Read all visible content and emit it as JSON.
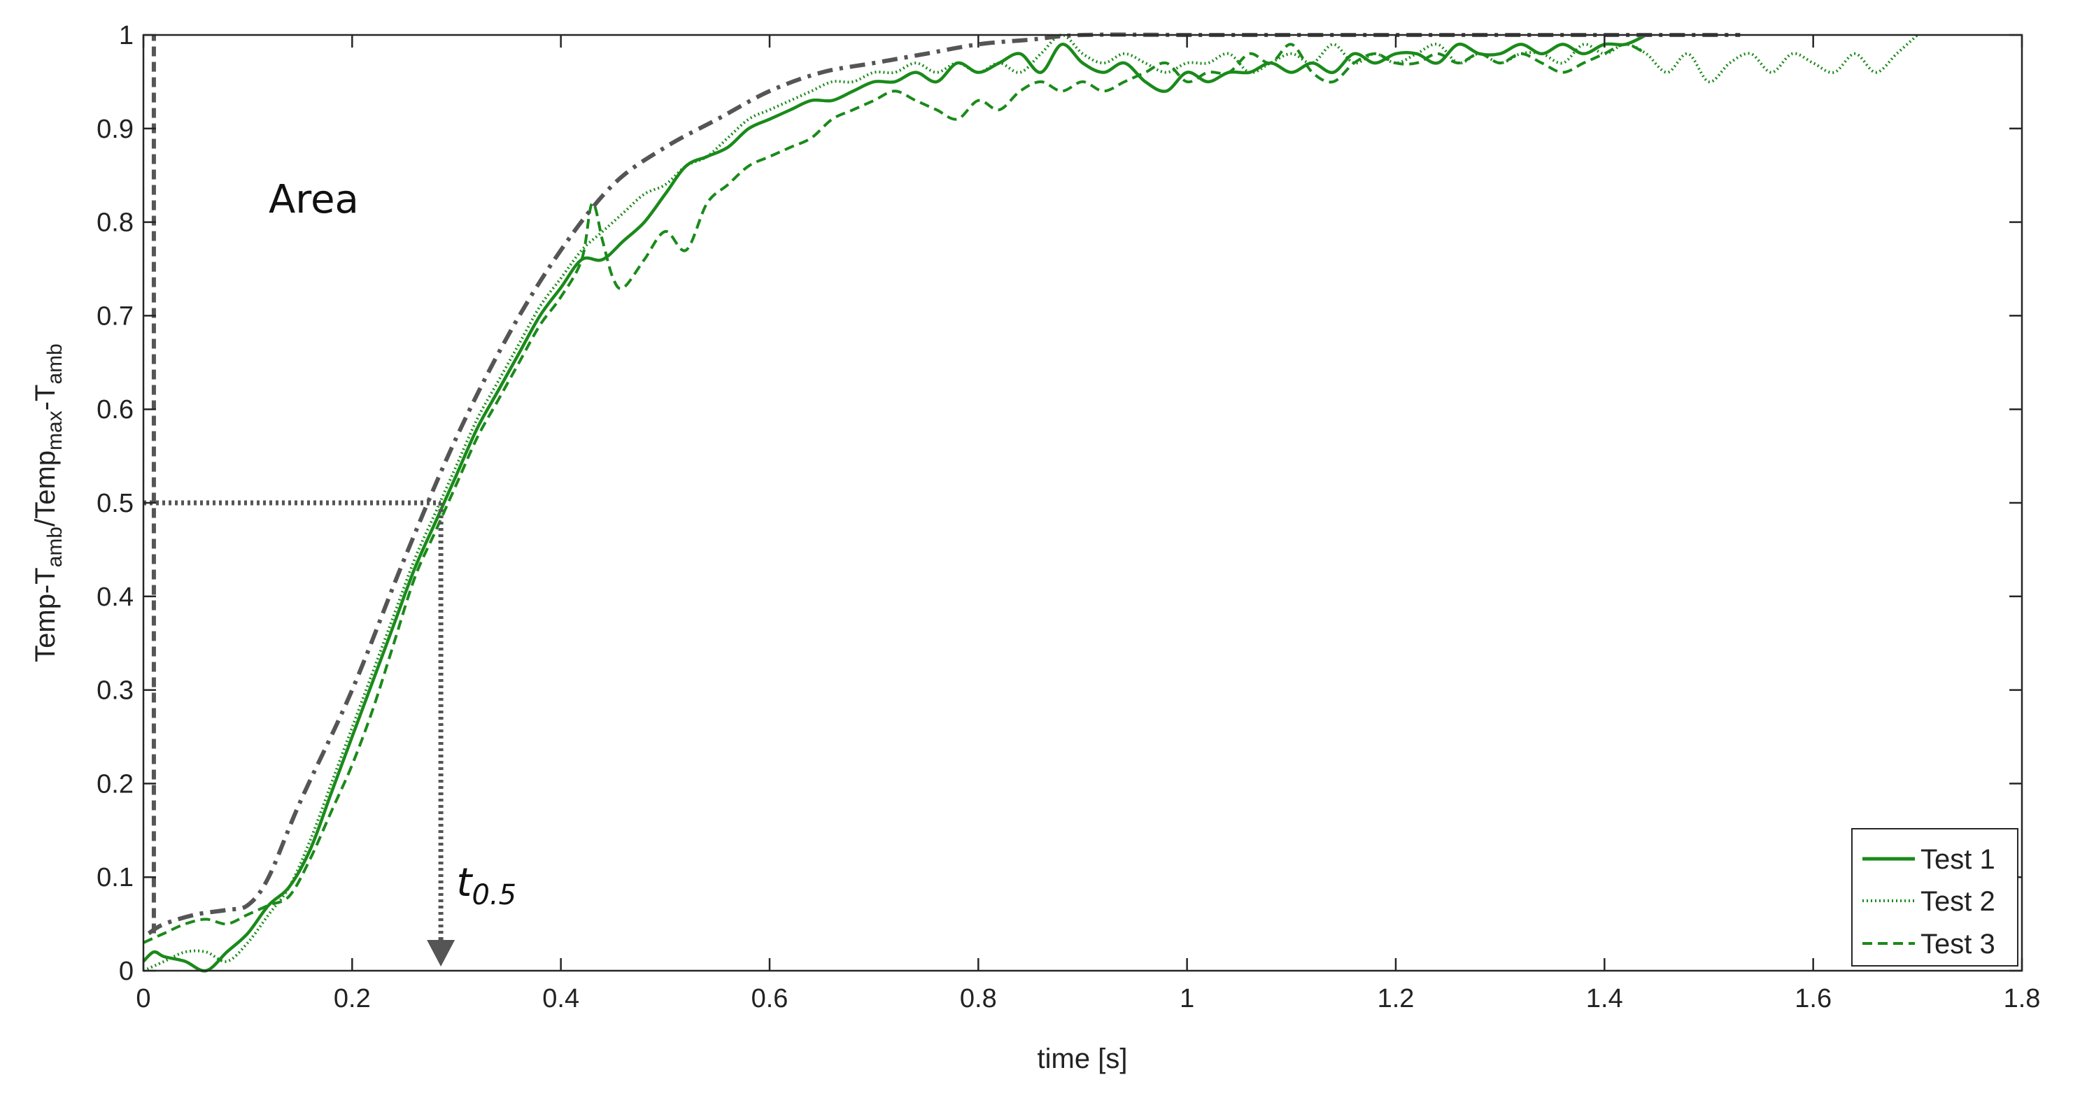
{
  "chart_data": {
    "type": "line",
    "xlabel": "time [s]",
    "ylabel": {
      "parts": [
        {
          "text": "Temp-T",
          "sub": false
        },
        {
          "text": "amb",
          "sub": true
        },
        {
          "text": "/Temp",
          "sub": false
        },
        {
          "text": "max",
          "sub": true
        },
        {
          "text": "-T",
          "sub": false
        },
        {
          "text": "amb",
          "sub": true
        }
      ]
    },
    "xlim": [
      0,
      1.8
    ],
    "ylim": [
      0,
      1
    ],
    "xticks": [
      0,
      0.2,
      0.4,
      0.6,
      0.8,
      1,
      1.2,
      1.4,
      1.6,
      1.8
    ],
    "xtick_labels": [
      "0",
      "0.2",
      "0.4",
      "0.6",
      "0.8",
      "1",
      "1.2",
      "1.4",
      "1.6",
      "1.8"
    ],
    "yticks": [
      0,
      0.1,
      0.2,
      0.3,
      0.4,
      0.5,
      0.6,
      0.7,
      0.8,
      0.9,
      1
    ],
    "ytick_labels": [
      "0",
      "0.1",
      "0.2",
      "0.3",
      "0.4",
      "0.5",
      "0.6",
      "0.7",
      "0.8",
      "0.9",
      "1"
    ],
    "grid": false,
    "legend_position": "bottom-right",
    "series": [
      {
        "name": "Test 1",
        "color": "#1a8a1a",
        "dash": "solid",
        "x": [
          0,
          0.01,
          0.02,
          0.04,
          0.06,
          0.08,
          0.1,
          0.12,
          0.14,
          0.16,
          0.18,
          0.2,
          0.22,
          0.24,
          0.26,
          0.28,
          0.3,
          0.32,
          0.34,
          0.36,
          0.38,
          0.4,
          0.42,
          0.44,
          0.46,
          0.48,
          0.5,
          0.52,
          0.54,
          0.56,
          0.58,
          0.6,
          0.62,
          0.64,
          0.66,
          0.68,
          0.7,
          0.72,
          0.74,
          0.76,
          0.78,
          0.8,
          0.82,
          0.84,
          0.86,
          0.88,
          0.9,
          0.92,
          0.94,
          0.96,
          0.98,
          1.0,
          1.02,
          1.04,
          1.06,
          1.08,
          1.1,
          1.12,
          1.14,
          1.16,
          1.18,
          1.2,
          1.22,
          1.24,
          1.26,
          1.28,
          1.3,
          1.32,
          1.34,
          1.36,
          1.38,
          1.4,
          1.42,
          1.44
        ],
        "y": [
          0.01,
          0.02,
          0.015,
          0.01,
          0.0,
          0.02,
          0.04,
          0.07,
          0.09,
          0.13,
          0.19,
          0.25,
          0.31,
          0.37,
          0.43,
          0.48,
          0.53,
          0.58,
          0.62,
          0.66,
          0.7,
          0.73,
          0.76,
          0.76,
          0.78,
          0.8,
          0.83,
          0.86,
          0.87,
          0.88,
          0.9,
          0.91,
          0.92,
          0.93,
          0.93,
          0.94,
          0.95,
          0.95,
          0.96,
          0.95,
          0.97,
          0.96,
          0.97,
          0.98,
          0.96,
          0.99,
          0.97,
          0.96,
          0.97,
          0.95,
          0.94,
          0.96,
          0.95,
          0.96,
          0.96,
          0.97,
          0.96,
          0.97,
          0.96,
          0.98,
          0.97,
          0.98,
          0.98,
          0.97,
          0.99,
          0.98,
          0.98,
          0.99,
          0.98,
          0.99,
          0.98,
          0.99,
          0.99,
          1.0
        ]
      },
      {
        "name": "Test 2",
        "color": "#1a8a1a",
        "dash": "dotted",
        "x": [
          0,
          0.02,
          0.04,
          0.06,
          0.08,
          0.1,
          0.12,
          0.14,
          0.16,
          0.18,
          0.2,
          0.22,
          0.24,
          0.26,
          0.28,
          0.3,
          0.32,
          0.34,
          0.36,
          0.38,
          0.4,
          0.42,
          0.44,
          0.46,
          0.48,
          0.5,
          0.52,
          0.54,
          0.56,
          0.58,
          0.6,
          0.62,
          0.64,
          0.66,
          0.68,
          0.7,
          0.72,
          0.74,
          0.76,
          0.78,
          0.8,
          0.82,
          0.84,
          0.86,
          0.88,
          0.9,
          0.92,
          0.94,
          0.96,
          0.98,
          1.0,
          1.02,
          1.04,
          1.06,
          1.08,
          1.1,
          1.12,
          1.14,
          1.16,
          1.18,
          1.2,
          1.22,
          1.24,
          1.26,
          1.28,
          1.3,
          1.32,
          1.34,
          1.36,
          1.38,
          1.4,
          1.42,
          1.44,
          1.46,
          1.48,
          1.5,
          1.52,
          1.54,
          1.56,
          1.58,
          1.6,
          1.62,
          1.64,
          1.66,
          1.68,
          1.7
        ],
        "y": [
          0.0,
          0.01,
          0.02,
          0.02,
          0.01,
          0.03,
          0.06,
          0.09,
          0.14,
          0.2,
          0.26,
          0.32,
          0.38,
          0.44,
          0.49,
          0.54,
          0.59,
          0.63,
          0.67,
          0.71,
          0.74,
          0.77,
          0.79,
          0.81,
          0.83,
          0.84,
          0.86,
          0.87,
          0.89,
          0.91,
          0.92,
          0.93,
          0.94,
          0.95,
          0.95,
          0.96,
          0.96,
          0.97,
          0.96,
          0.97,
          0.96,
          0.97,
          0.96,
          0.98,
          1.0,
          0.98,
          0.97,
          0.98,
          0.97,
          0.96,
          0.97,
          0.97,
          0.98,
          0.96,
          0.97,
          0.98,
          0.97,
          0.99,
          0.97,
          0.98,
          0.97,
          0.98,
          0.99,
          0.97,
          0.98,
          0.97,
          0.98,
          0.98,
          0.97,
          0.99,
          0.98,
          0.99,
          0.98,
          0.96,
          0.98,
          0.95,
          0.97,
          0.98,
          0.96,
          0.98,
          0.97,
          0.96,
          0.98,
          0.96,
          0.98,
          1.0
        ]
      },
      {
        "name": "Test 3",
        "color": "#1a8a1a",
        "dash": "dashed",
        "x": [
          0,
          0.02,
          0.04,
          0.06,
          0.08,
          0.1,
          0.12,
          0.14,
          0.16,
          0.18,
          0.2,
          0.22,
          0.24,
          0.26,
          0.28,
          0.3,
          0.32,
          0.34,
          0.36,
          0.38,
          0.4,
          0.42,
          0.43,
          0.44,
          0.45,
          0.46,
          0.48,
          0.5,
          0.52,
          0.54,
          0.56,
          0.58,
          0.6,
          0.62,
          0.64,
          0.66,
          0.68,
          0.7,
          0.72,
          0.74,
          0.76,
          0.78,
          0.8,
          0.82,
          0.84,
          0.86,
          0.88,
          0.9,
          0.92,
          0.94,
          0.96,
          0.98,
          1.0,
          1.02,
          1.04,
          1.06,
          1.08,
          1.1,
          1.12,
          1.14,
          1.16,
          1.18,
          1.2,
          1.22,
          1.24,
          1.26,
          1.28,
          1.3,
          1.32,
          1.34,
          1.36,
          1.38,
          1.4,
          1.42,
          1.44
        ],
        "y": [
          0.03,
          0.04,
          0.05,
          0.055,
          0.05,
          0.06,
          0.07,
          0.08,
          0.12,
          0.17,
          0.22,
          0.28,
          0.35,
          0.42,
          0.47,
          0.52,
          0.57,
          0.61,
          0.65,
          0.69,
          0.72,
          0.76,
          0.82,
          0.78,
          0.74,
          0.73,
          0.76,
          0.79,
          0.77,
          0.82,
          0.84,
          0.86,
          0.87,
          0.88,
          0.89,
          0.91,
          0.92,
          0.93,
          0.94,
          0.93,
          0.92,
          0.91,
          0.93,
          0.92,
          0.94,
          0.95,
          0.94,
          0.95,
          0.94,
          0.95,
          0.96,
          0.97,
          0.95,
          0.96,
          0.96,
          0.98,
          0.97,
          0.99,
          0.96,
          0.95,
          0.97,
          0.98,
          0.97,
          0.97,
          0.98,
          0.97,
          0.98,
          0.97,
          0.98,
          0.97,
          0.96,
          0.97,
          0.98,
          0.99,
          0.98
        ]
      }
    ],
    "reference_curve": {
      "color": "#555555",
      "dash": "dashdot",
      "x": [
        0.005,
        0.02,
        0.05,
        0.08,
        0.1,
        0.12,
        0.15,
        0.2,
        0.25,
        0.3,
        0.35,
        0.4,
        0.45,
        0.5,
        0.55,
        0.6,
        0.65,
        0.7,
        0.75,
        0.8,
        0.85,
        0.9,
        1.0,
        1.1,
        1.2,
        1.3,
        1.4,
        1.5,
        1.53
      ],
      "y": [
        0.04,
        0.05,
        0.06,
        0.065,
        0.07,
        0.1,
        0.18,
        0.3,
        0.44,
        0.57,
        0.68,
        0.77,
        0.84,
        0.88,
        0.91,
        0.94,
        0.96,
        0.97,
        0.98,
        0.99,
        0.995,
        1.0,
        1.0,
        1.0,
        1.0,
        1.0,
        1.0,
        1.0,
        1.0
      ]
    },
    "area_boundary": {
      "color": "#555555",
      "dash": "dashed",
      "x": [
        0.01,
        0.01
      ],
      "y": [
        0.04,
        1.0
      ]
    },
    "half_level_marker": {
      "color": "#555555",
      "dash": "dotted",
      "x_value": 0.285,
      "y_value": 0.5
    },
    "annotations": {
      "area_label": "Area",
      "area_label_x": 0.12,
      "area_label_y": 0.81,
      "t_label_main": "t",
      "t_label_sub": "0.5",
      "t_label_x": 0.3,
      "t_label_y": 0.08
    }
  }
}
